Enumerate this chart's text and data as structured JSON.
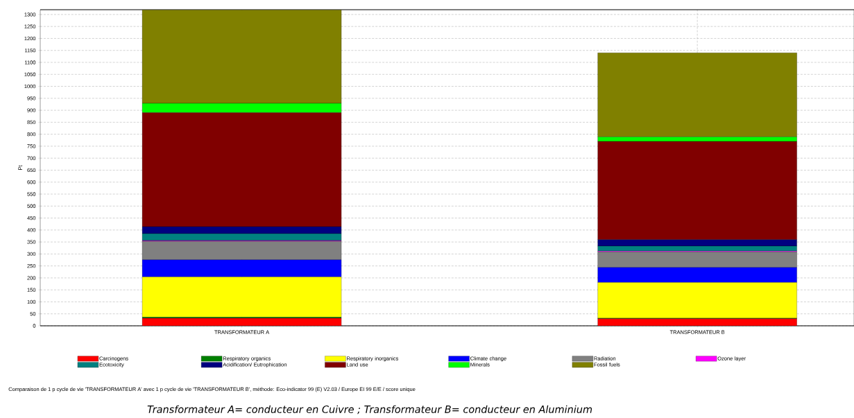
{
  "chart_data": {
    "type": "bar",
    "stacked": true,
    "ylabel": "Pt",
    "categories": [
      "TRANSFORMATEUR A",
      "TRANSFORMATEUR B"
    ],
    "series": [
      {
        "name": "Carcinogens",
        "color": "#ff0000",
        "values": [
          32,
          30
        ]
      },
      {
        "name": "Respiratory organics",
        "color": "#008000",
        "values": [
          4,
          2
        ]
      },
      {
        "name": "Respiratory inorganics",
        "color": "#ffff00",
        "values": [
          168,
          149
        ]
      },
      {
        "name": "Climate change",
        "color": "#0000ff",
        "values": [
          72,
          63
        ]
      },
      {
        "name": "Radiation",
        "color": "#808080",
        "values": [
          77,
          64
        ]
      },
      {
        "name": "Ozone layer",
        "color": "#ff00ff",
        "values": [
          3,
          4
        ]
      },
      {
        "name": "Ecotoxicity",
        "color": "#008080",
        "values": [
          29,
          21
        ]
      },
      {
        "name": "Acidification/ Eutrophication",
        "color": "#000080",
        "values": [
          29,
          27
        ]
      },
      {
        "name": "Land use",
        "color": "#800000",
        "values": [
          476,
          410
        ]
      },
      {
        "name": "Minerals",
        "color": "#00ff00",
        "values": [
          39,
          19
        ]
      },
      {
        "name": "Fossil fuels",
        "color": "#808000",
        "values": [
          390,
          351
        ]
      }
    ],
    "ylim": [
      0,
      1320
    ],
    "yticks": [
      0,
      50,
      100,
      150,
      200,
      250,
      300,
      350,
      400,
      450,
      500,
      550,
      600,
      650,
      700,
      750,
      800,
      850,
      900,
      950,
      1000,
      1050,
      1100,
      1150,
      1200,
      1250,
      1300
    ],
    "grid": true,
    "legend": "bottom",
    "annotations": [
      "Comparaison de 1 p cycle de vie 'TRANSFORMATEUR A' avec 1 p cycle de vie 'TRANSFORMATEUR B', méthode: Eco-indicator 99 (E) V2.03 / Europe EI 99 E/E / score unique",
      "Transformateur A= conducteur en Cuivre ; Transformateur B= conducteur en Aluminium"
    ]
  }
}
